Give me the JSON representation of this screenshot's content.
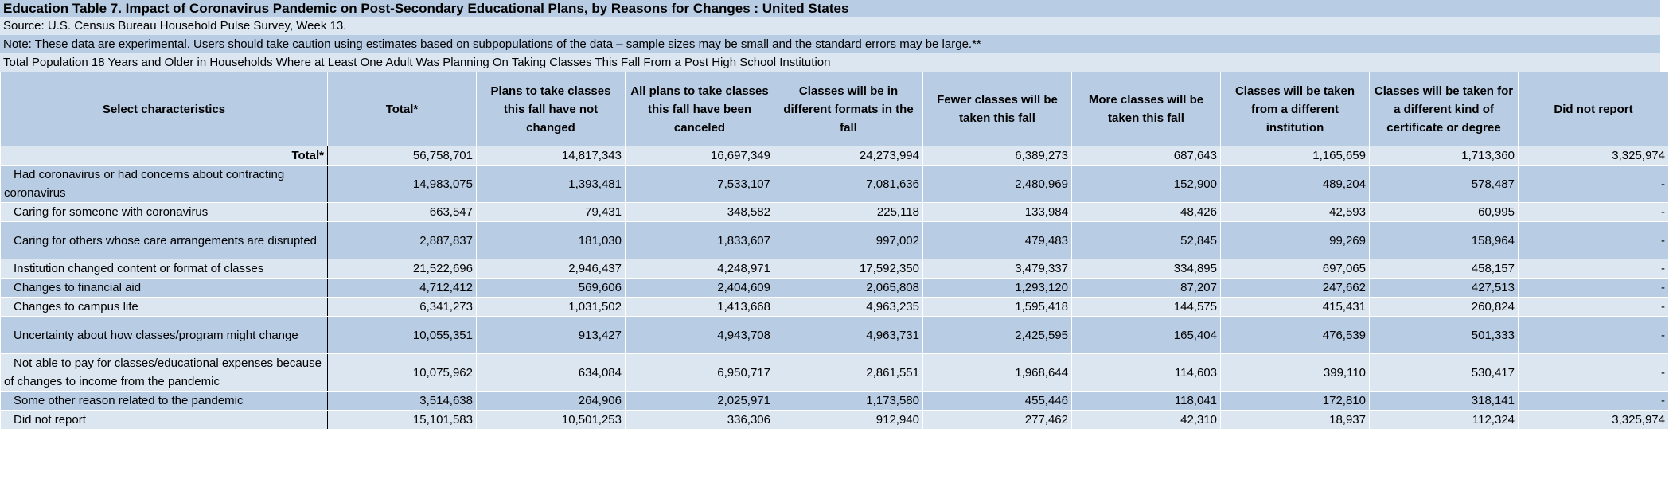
{
  "title": "Education Table 7. Impact of Coronavirus Pandemic on Post-Secondary Educational Plans, by Reasons for Changes : United States",
  "source": "Source: U.S. Census Bureau Household Pulse Survey, Week 13.",
  "note": "Note: These data are experimental. Users should take caution using estimates based on subpopulations of the data – sample sizes may be small and the standard errors may be large.**",
  "population": "Total Population 18 Years and Older in Households Where at Least One Adult Was Planning On Taking Classes This Fall From a Post High School Institution",
  "headers": [
    "Select characteristics",
    "Total*",
    "Plans to take classes this fall have not changed",
    "All plans to take classes this fall have been canceled",
    "Classes will be in different formats in the fall",
    "Fewer classes will be taken this fall",
    "More classes will be taken this fall",
    "Classes will be taken from a different institution",
    "Classes will be taken for a different kind of certificate or degree",
    "Did not report"
  ],
  "rows": [
    {
      "label": "Total*",
      "values": [
        "56,758,701",
        "14,817,343",
        "16,697,349",
        "24,273,994",
        "6,389,273",
        "687,643",
        "1,165,659",
        "1,713,360",
        "3,325,974"
      ]
    },
    {
      "label": "Had coronavirus or had concerns about contracting coronavirus",
      "values": [
        "14,983,075",
        "1,393,481",
        "7,533,107",
        "7,081,636",
        "2,480,969",
        "152,900",
        "489,204",
        "578,487",
        "-"
      ]
    },
    {
      "label": "Caring for someone with coronavirus",
      "values": [
        "663,547",
        "79,431",
        "348,582",
        "225,118",
        "133,984",
        "48,426",
        "42,593",
        "60,995",
        "-"
      ]
    },
    {
      "label": "Caring for others whose care arrangements are disrupted",
      "values": [
        "2,887,837",
        "181,030",
        "1,833,607",
        "997,002",
        "479,483",
        "52,845",
        "99,269",
        "158,964",
        "-"
      ]
    },
    {
      "label": "Institution changed content or format of classes",
      "values": [
        "21,522,696",
        "2,946,437",
        "4,248,971",
        "17,592,350",
        "3,479,337",
        "334,895",
        "697,065",
        "458,157",
        "-"
      ]
    },
    {
      "label": "Changes to financial aid",
      "values": [
        "4,712,412",
        "569,606",
        "2,404,609",
        "2,065,808",
        "1,293,120",
        "87,207",
        "247,662",
        "427,513",
        "-"
      ]
    },
    {
      "label": "Changes to campus life",
      "values": [
        "6,341,273",
        "1,031,502",
        "1,413,668",
        "4,963,235",
        "1,595,418",
        "144,575",
        "415,431",
        "260,824",
        "-"
      ]
    },
    {
      "label": "Uncertainty about how classes/program might change",
      "values": [
        "10,055,351",
        "913,427",
        "4,943,708",
        "4,963,731",
        "2,425,595",
        "165,404",
        "476,539",
        "501,333",
        "-"
      ]
    },
    {
      "label": "Not able to pay for classes/educational expenses because of changes to income from the pandemic",
      "values": [
        "10,075,962",
        "634,084",
        "6,950,717",
        "2,861,551",
        "1,968,644",
        "114,603",
        "399,110",
        "530,417",
        "-"
      ]
    },
    {
      "label": "Some other reason related to the pandemic",
      "values": [
        "3,514,638",
        "264,906",
        "2,025,971",
        "1,173,580",
        "455,446",
        "118,041",
        "172,810",
        "318,141",
        "-"
      ]
    },
    {
      "label": "Did not report",
      "values": [
        "15,101,583",
        "10,501,253",
        "336,306",
        "912,940",
        "277,462",
        "42,310",
        "18,937",
        "112,324",
        "3,325,974"
      ]
    }
  ]
}
